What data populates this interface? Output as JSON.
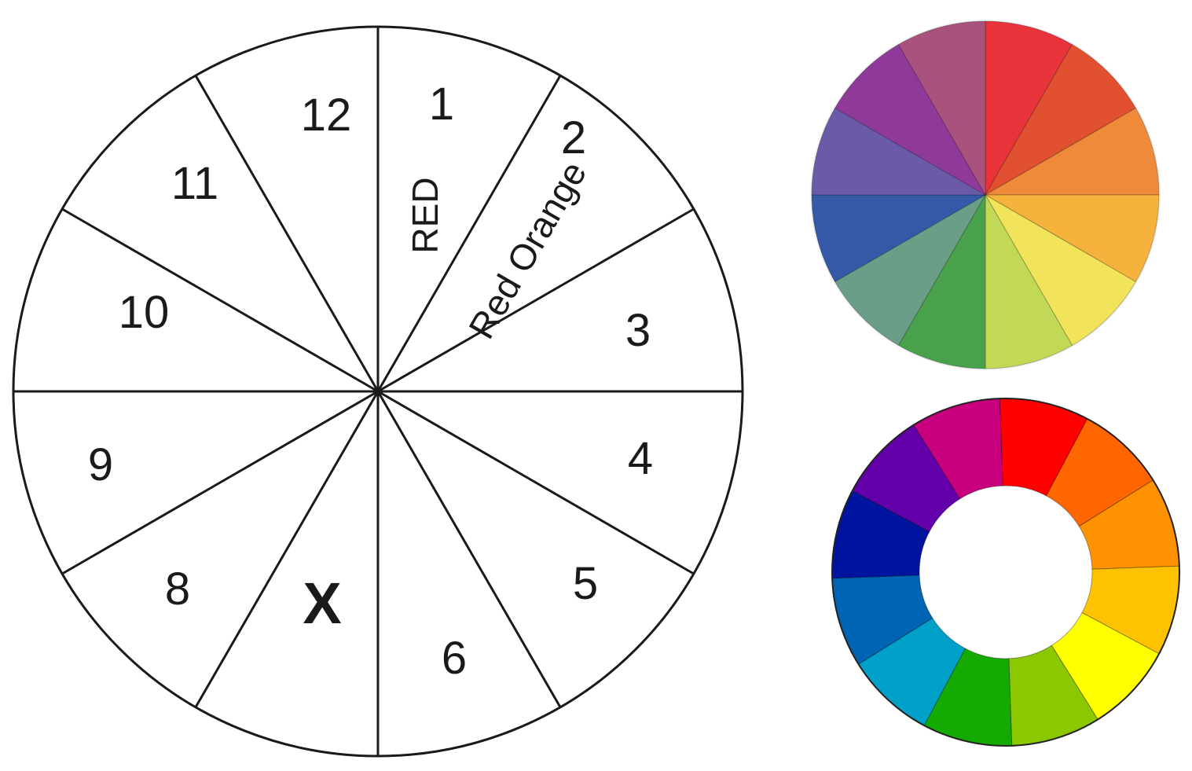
{
  "blank_wheel": {
    "segments": [
      {
        "number": "1",
        "color_name": "RED"
      },
      {
        "number": "2",
        "color_name": "Red Orange"
      },
      {
        "number": "3",
        "color_name": ""
      },
      {
        "number": "4",
        "color_name": ""
      },
      {
        "number": "5",
        "color_name": ""
      },
      {
        "number": "6",
        "color_name": ""
      },
      {
        "number": "X",
        "color_name": ""
      },
      {
        "number": "8",
        "color_name": ""
      },
      {
        "number": "9",
        "color_name": ""
      },
      {
        "number": "10",
        "color_name": ""
      },
      {
        "number": "11",
        "color_name": ""
      },
      {
        "number": "12",
        "color_name": ""
      }
    ]
  },
  "pie_wheel": {
    "colors": [
      "#e8333a",
      "#e2512f",
      "#ee8a3a",
      "#f5b23c",
      "#f1e45a",
      "#c2d857",
      "#4aa14b",
      "#6b9e86",
      "#3559a6",
      "#6a5aa8",
      "#8f3a98",
      "#a9527d"
    ]
  },
  "ring_wheel": {
    "colors": [
      "#ff0000",
      "#ff6600",
      "#ff9200",
      "#ffc200",
      "#ffff00",
      "#8cc800",
      "#14aa00",
      "#00a0c8",
      "#0064b4",
      "#0014a0",
      "#6400aa",
      "#c8007e"
    ]
  }
}
